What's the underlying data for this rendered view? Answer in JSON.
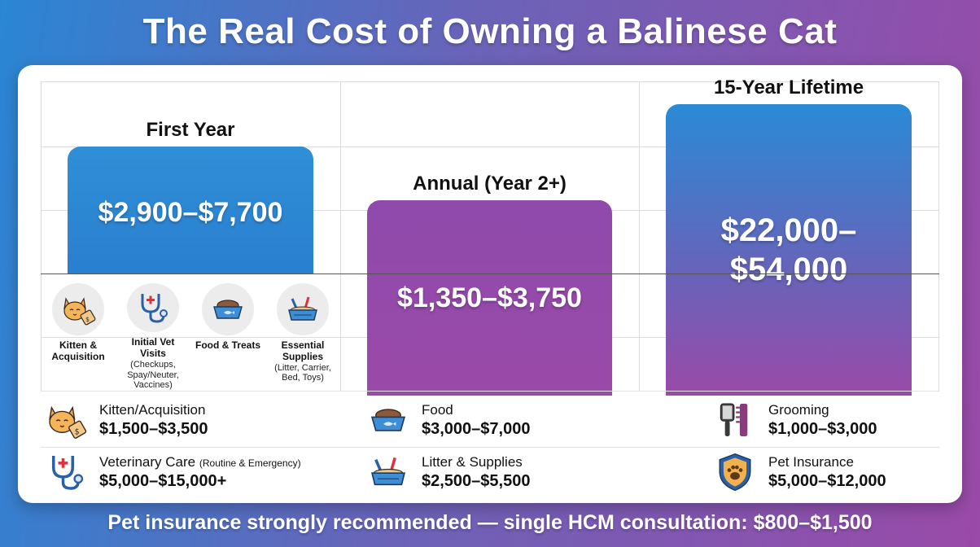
{
  "title": "The Real Cost of Owning a Balinese Cat",
  "bars": {
    "first_year": {
      "heading": "First Year",
      "value": "$2,900–$7,700",
      "color": "#2a86d4"
    },
    "annual": {
      "heading": "Annual (Year 2+)",
      "value": "$1,350–$3,750",
      "color": "#9a4aa8"
    },
    "lifetime": {
      "heading": "15-Year Lifetime",
      "value_line1": "$22,000–",
      "value_line2": "$54,000",
      "color_top": "#2a8ad6",
      "color_bottom": "#9a4aa8"
    }
  },
  "first_year_breakdown": [
    {
      "label": "Kitten & Acquisition",
      "note": "",
      "icon": "cat-with-price-tag-icon"
    },
    {
      "label": "Initial Vet Visits",
      "note": "(Checkups, Spay/Neuter, Vaccines)",
      "icon": "stethoscope-icon"
    },
    {
      "label": "Food & Treats",
      "note": "",
      "icon": "food-bowl-icon"
    },
    {
      "label": "Essential Supplies",
      "note": "(Litter, Carrier, Bed, Toys)",
      "icon": "litter-box-icon"
    }
  ],
  "costs": {
    "kitten": {
      "label": "Kitten/Acquisition",
      "value": "$1,500–$3,500",
      "icon": "cat-with-price-tag-icon"
    },
    "food": {
      "label": "Food",
      "value": "$3,000–$7,000",
      "icon": "food-bowl-icon"
    },
    "grooming": {
      "label": "Grooming",
      "value": "$1,000–$3,000",
      "icon": "grooming-brush-comb-icon"
    },
    "vet": {
      "label": "Veterinary Care",
      "label_note": "(Routine & Emergency)",
      "value": "$5,000–$15,000+",
      "icon": "stethoscope-icon"
    },
    "litter": {
      "label": "Litter & Supplies",
      "value": "$2,500–$5,500",
      "icon": "litter-box-icon"
    },
    "insurance": {
      "label": "Pet Insurance",
      "value": "$5,000–$12,000",
      "icon": "shield-paw-icon"
    }
  },
  "footer": "Pet insurance strongly recommended — single HCM consultation: $800–$1,500"
}
